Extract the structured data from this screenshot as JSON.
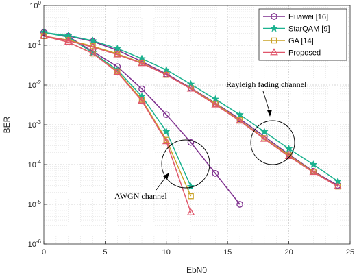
{
  "chart_data": {
    "type": "line",
    "xlabel": "EbN0",
    "ylabel": "BER",
    "xlim": [
      0,
      25
    ],
    "ylim_exponent": [
      -6,
      0
    ],
    "yscale": "log",
    "x_ticks": [
      "0",
      "5",
      "10",
      "15",
      "20",
      "25"
    ],
    "y_tick_base": "10",
    "y_tick_exponents": [
      "0",
      "-1",
      "-2",
      "-3",
      "-4",
      "-5",
      "-6"
    ],
    "grid": true,
    "legend_position": "top-right",
    "series": [
      {
        "name": "Huawei [16]",
        "color": "#7E2F8E",
        "marker": "circle",
        "points": [
          [
            0,
            0.21
          ],
          [
            2,
            0.17
          ],
          [
            4,
            0.125
          ],
          [
            6,
            0.075
          ],
          [
            8,
            0.039
          ],
          [
            10,
            0.019
          ],
          [
            12,
            0.0085
          ],
          [
            14,
            0.0035
          ],
          [
            16,
            0.0014
          ],
          [
            18,
            0.00051
          ],
          [
            20,
            0.00018
          ],
          [
            22,
            6.8e-05
          ],
          [
            24,
            3e-05
          ],
          [
            0,
            0.21
          ],
          [
            2,
            0.165
          ],
          [
            4,
            0.07
          ],
          [
            6,
            0.029
          ],
          [
            8,
            0.008
          ],
          [
            10,
            0.0018
          ],
          [
            12,
            0.00036
          ],
          [
            14,
            6e-05
          ],
          [
            16,
            1e-05
          ]
        ]
      },
      {
        "name": "StarQAM [9]",
        "color": "#1BB28F",
        "marker": "star",
        "points": [
          [
            0,
            0.21
          ],
          [
            2,
            0.175
          ],
          [
            4,
            0.13
          ],
          [
            6,
            0.083
          ],
          [
            8,
            0.046
          ],
          [
            10,
            0.024
          ],
          [
            12,
            0.0105
          ],
          [
            14,
            0.0044
          ],
          [
            16,
            0.0018
          ],
          [
            18,
            0.00067
          ],
          [
            20,
            0.00025
          ],
          [
            22,
            0.0001
          ],
          [
            24,
            3.8e-05
          ],
          [
            0,
            0.21
          ],
          [
            2,
            0.16
          ],
          [
            4,
            0.065
          ],
          [
            6,
            0.024
          ],
          [
            8,
            0.0052
          ],
          [
            10,
            0.00068
          ],
          [
            12,
            2.8e-05
          ]
        ]
      },
      {
        "name": "GA [14]",
        "color": "#C9A227",
        "marker": "square",
        "points": [
          [
            0,
            0.17
          ],
          [
            2,
            0.135
          ],
          [
            4,
            0.095
          ],
          [
            6,
            0.061
          ],
          [
            8,
            0.036
          ],
          [
            10,
            0.018
          ],
          [
            12,
            0.0082
          ],
          [
            14,
            0.0034
          ],
          [
            16,
            0.0013
          ],
          [
            18,
            0.00046
          ],
          [
            20,
            0.00017
          ],
          [
            22,
            6.6e-05
          ],
          [
            24,
            2.8e-05
          ],
          [
            0,
            0.17
          ],
          [
            2,
            0.12
          ],
          [
            4,
            0.062
          ],
          [
            6,
            0.022
          ],
          [
            8,
            0.0043
          ],
          [
            10,
            0.00042
          ],
          [
            12,
            1.6e-05
          ]
        ]
      },
      {
        "name": "Proposed",
        "color": "#E0566B",
        "marker": "triangle",
        "points": [
          [
            0,
            0.17
          ],
          [
            2,
            0.13
          ],
          [
            4,
            0.09
          ],
          [
            6,
            0.058
          ],
          [
            8,
            0.035
          ],
          [
            10,
            0.018
          ],
          [
            12,
            0.008
          ],
          [
            14,
            0.0032
          ],
          [
            16,
            0.00125
          ],
          [
            18,
            0.00044
          ],
          [
            20,
            0.00016
          ],
          [
            22,
            6.4e-05
          ],
          [
            24,
            2.8e-05
          ],
          [
            0,
            0.17
          ],
          [
            2,
            0.12
          ],
          [
            4,
            0.062
          ],
          [
            6,
            0.021
          ],
          [
            8,
            0.004
          ],
          [
            10,
            0.00038
          ],
          [
            12,
            6.2e-06
          ]
        ]
      }
    ],
    "annotations": [
      {
        "text": "Rayleigh fading channel"
      },
      {
        "text": "AWGN channel"
      }
    ]
  }
}
